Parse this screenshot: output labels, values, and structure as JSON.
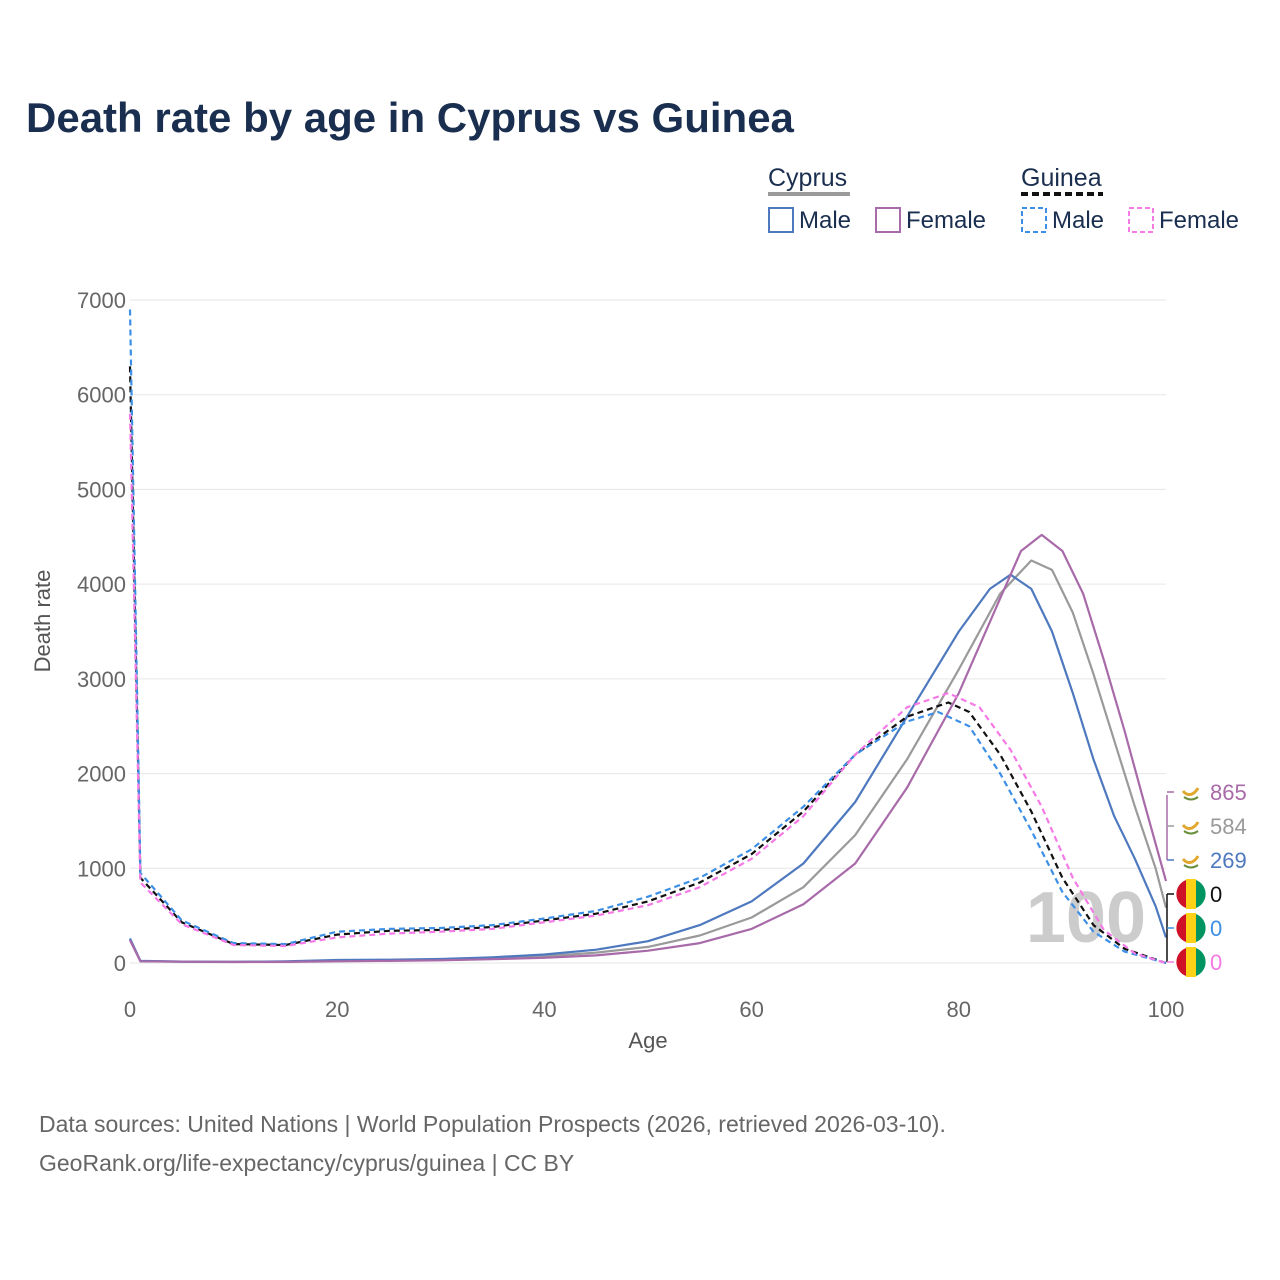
{
  "title": "Death rate by age in Cyprus vs Guinea",
  "legend": {
    "groups": [
      {
        "name": "Cyprus",
        "entries": [
          "Male",
          "Female"
        ]
      },
      {
        "name": "Guinea",
        "entries": [
          "Male",
          "Female"
        ]
      }
    ]
  },
  "watermark": "100",
  "source_line1": "Data sources: United Nations | World Population Prospects (2026, retrieved 2026-03-10).",
  "source_line2": "GeoRank.org/life-expectancy/cyprus/guinea | CC BY",
  "colors": {
    "cyprus_male": "#4e79bf",
    "cyprus_female": "#a86aa8",
    "cyprus_total": "#9a9a9a",
    "guinea_male": "#3d8fe6",
    "guinea_female": "#f57ae6",
    "guinea_total": "#111111",
    "grid": "#e6e6e6",
    "axis_text": "#666666"
  },
  "end_labels": [
    {
      "value": "865",
      "series": "Cyprus Female",
      "color": "#a86aa8",
      "flag": "cyprus"
    },
    {
      "value": "584",
      "series": "Cyprus Total",
      "color": "#9a9a9a",
      "flag": "cyprus"
    },
    {
      "value": "269",
      "series": "Cyprus Male",
      "color": "#4e79bf",
      "flag": "cyprus"
    },
    {
      "value": "0",
      "series": "Guinea Total",
      "color": "#111111",
      "flag": "guinea"
    },
    {
      "value": "0",
      "series": "Guinea Male",
      "color": "#3d8fe6",
      "flag": "guinea"
    },
    {
      "value": "0",
      "series": "Guinea Female",
      "color": "#f57ae6",
      "flag": "guinea"
    }
  ],
  "chart_data": {
    "type": "line",
    "title": "Death rate by age in Cyprus vs Guinea",
    "xlabel": "Age",
    "ylabel": "Death rate",
    "xlim": [
      0,
      100
    ],
    "ylim": [
      0,
      7000
    ],
    "xticks": [
      0,
      20,
      40,
      60,
      80,
      100
    ],
    "yticks": [
      0,
      1000,
      2000,
      3000,
      4000,
      5000,
      6000,
      7000
    ],
    "grid": true,
    "legend_position": "top-right",
    "series": [
      {
        "name": "Cyprus Total",
        "color": "#9a9a9a",
        "dash": "solid",
        "points": [
          [
            0,
            250
          ],
          [
            1,
            20
          ],
          [
            5,
            15
          ],
          [
            10,
            12
          ],
          [
            15,
            15
          ],
          [
            20,
            25
          ],
          [
            25,
            28
          ],
          [
            30,
            35
          ],
          [
            35,
            50
          ],
          [
            40,
            70
          ],
          [
            45,
            110
          ],
          [
            50,
            170
          ],
          [
            55,
            290
          ],
          [
            60,
            480
          ],
          [
            65,
            800
          ],
          [
            70,
            1350
          ],
          [
            75,
            2150
          ],
          [
            80,
            3100
          ],
          [
            84,
            3900
          ],
          [
            87,
            4250
          ],
          [
            89,
            4150
          ],
          [
            91,
            3700
          ],
          [
            93,
            3050
          ],
          [
            95,
            2350
          ],
          [
            97,
            1650
          ],
          [
            99,
            1000
          ],
          [
            100,
            584
          ]
        ]
      },
      {
        "name": "Cyprus Male",
        "color": "#4e79bf",
        "dash": "solid",
        "points": [
          [
            0,
            260
          ],
          [
            1,
            22
          ],
          [
            5,
            15
          ],
          [
            10,
            12
          ],
          [
            15,
            18
          ],
          [
            20,
            32
          ],
          [
            25,
            35
          ],
          [
            30,
            42
          ],
          [
            35,
            60
          ],
          [
            40,
            90
          ],
          [
            45,
            140
          ],
          [
            50,
            230
          ],
          [
            55,
            400
          ],
          [
            60,
            650
          ],
          [
            65,
            1050
          ],
          [
            70,
            1700
          ],
          [
            75,
            2600
          ],
          [
            80,
            3500
          ],
          [
            83,
            3950
          ],
          [
            85,
            4100
          ],
          [
            87,
            3950
          ],
          [
            89,
            3500
          ],
          [
            91,
            2850
          ],
          [
            93,
            2150
          ],
          [
            95,
            1550
          ],
          [
            97,
            1100
          ],
          [
            99,
            600
          ],
          [
            100,
            269
          ]
        ]
      },
      {
        "name": "Cyprus Female",
        "color": "#a86aa8",
        "dash": "solid",
        "points": [
          [
            0,
            240
          ],
          [
            1,
            18
          ],
          [
            5,
            14
          ],
          [
            10,
            11
          ],
          [
            15,
            12
          ],
          [
            20,
            18
          ],
          [
            25,
            22
          ],
          [
            30,
            28
          ],
          [
            35,
            40
          ],
          [
            40,
            55
          ],
          [
            45,
            80
          ],
          [
            50,
            130
          ],
          [
            55,
            210
          ],
          [
            60,
            360
          ],
          [
            65,
            620
          ],
          [
            70,
            1050
          ],
          [
            75,
            1850
          ],
          [
            80,
            2850
          ],
          [
            84,
            3850
          ],
          [
            86,
            4350
          ],
          [
            88,
            4520
          ],
          [
            90,
            4350
          ],
          [
            92,
            3900
          ],
          [
            94,
            3200
          ],
          [
            96,
            2450
          ],
          [
            98,
            1650
          ],
          [
            100,
            865
          ]
        ]
      },
      {
        "name": "Guinea Total",
        "color": "#111111",
        "dash": "dashed",
        "points": [
          [
            0,
            6300
          ],
          [
            1,
            900
          ],
          [
            5,
            430
          ],
          [
            10,
            200
          ],
          [
            15,
            190
          ],
          [
            20,
            300
          ],
          [
            25,
            340
          ],
          [
            30,
            350
          ],
          [
            35,
            380
          ],
          [
            40,
            450
          ],
          [
            45,
            520
          ],
          [
            50,
            650
          ],
          [
            55,
            850
          ],
          [
            60,
            1150
          ],
          [
            65,
            1600
          ],
          [
            70,
            2200
          ],
          [
            75,
            2600
          ],
          [
            79,
            2750
          ],
          [
            81,
            2650
          ],
          [
            84,
            2200
          ],
          [
            87,
            1600
          ],
          [
            90,
            900
          ],
          [
            93,
            400
          ],
          [
            96,
            150
          ],
          [
            100,
            0
          ]
        ]
      },
      {
        "name": "Guinea Male",
        "color": "#3d8fe6",
        "dash": "dashed",
        "points": [
          [
            0,
            6900
          ],
          [
            1,
            950
          ],
          [
            5,
            450
          ],
          [
            10,
            210
          ],
          [
            15,
            200
          ],
          [
            20,
            330
          ],
          [
            25,
            360
          ],
          [
            30,
            370
          ],
          [
            35,
            400
          ],
          [
            40,
            470
          ],
          [
            45,
            550
          ],
          [
            50,
            700
          ],
          [
            55,
            900
          ],
          [
            60,
            1200
          ],
          [
            65,
            1650
          ],
          [
            70,
            2200
          ],
          [
            75,
            2550
          ],
          [
            78,
            2650
          ],
          [
            81,
            2500
          ],
          [
            84,
            2000
          ],
          [
            87,
            1400
          ],
          [
            90,
            750
          ],
          [
            93,
            330
          ],
          [
            96,
            120
          ],
          [
            100,
            0
          ]
        ]
      },
      {
        "name": "Guinea Female",
        "color": "#f57ae6",
        "dash": "dashed",
        "points": [
          [
            0,
            5800
          ],
          [
            1,
            850
          ],
          [
            5,
            410
          ],
          [
            10,
            190
          ],
          [
            15,
            180
          ],
          [
            20,
            270
          ],
          [
            25,
            310
          ],
          [
            30,
            330
          ],
          [
            35,
            360
          ],
          [
            40,
            430
          ],
          [
            45,
            500
          ],
          [
            50,
            610
          ],
          [
            55,
            800
          ],
          [
            60,
            1100
          ],
          [
            65,
            1550
          ],
          [
            70,
            2200
          ],
          [
            75,
            2700
          ],
          [
            79,
            2850
          ],
          [
            82,
            2700
          ],
          [
            85,
            2250
          ],
          [
            88,
            1650
          ],
          [
            91,
            900
          ],
          [
            94,
            350
          ],
          [
            97,
            100
          ],
          [
            100,
            0
          ]
        ]
      }
    ]
  }
}
